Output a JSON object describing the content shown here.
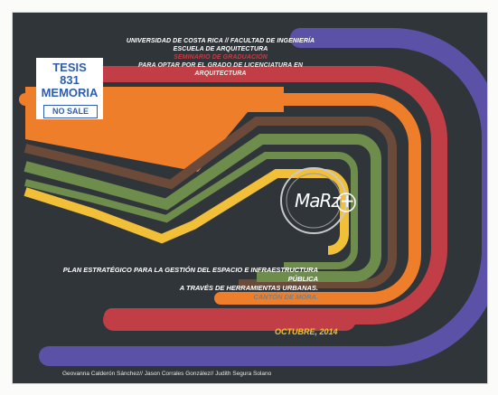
{
  "stamp": {
    "line1": "TESIS",
    "line2": "831",
    "line3": "MEMORIA",
    "label": "NO SALE"
  },
  "header": {
    "university": "UNIVERSIDAD DE COSTA RICA // FACULTAD DE INGENIERÍA",
    "school": "ESCUELA DE ARQUITECTURA",
    "seminar": "SEMINARIO DE GRADUACIÓN",
    "purpose": "PARA OPTAR POR EL GRADO DE LICENCIATURA EN ARQUITECTURA"
  },
  "logo": {
    "text": "MaRz+"
  },
  "title": {
    "line1": "PLAN ESTRATÉGICO PARA LA GESTIÓN DEL ESPACIO E INFRAESTRUCTURA PÚBLICA",
    "line2": "A TRAVÉS DE HERRAMIENTAS URBANAS.",
    "location": "CANTÓN DE MORA."
  },
  "date": "OCTUBRE, 2014",
  "authors": "Geovanna Calderón Sánchez// Jason Corrales González// Judith Segura Solano",
  "colors": {
    "background": "#30353a",
    "purple": "#5b52a8",
    "red": "#c23e46",
    "orange": "#ee7e2a",
    "brown": "#6b4a3a",
    "green": "#6e8d4c",
    "yellow": "#f2c038"
  }
}
